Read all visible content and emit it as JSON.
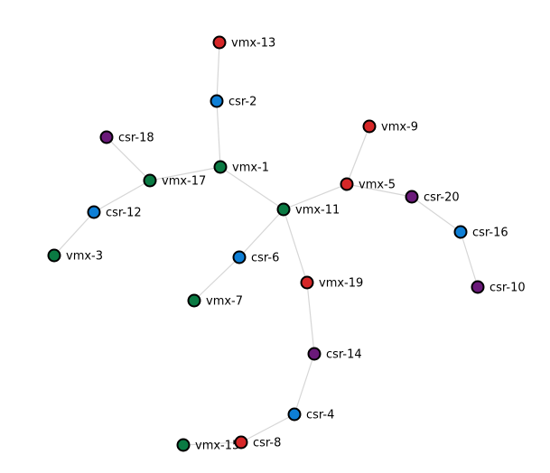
{
  "colors": {
    "red": "#d62728",
    "blue": "#0e7fd6",
    "green": "#0a7a43",
    "purple": "#6b1a7a",
    "edge": "#d6d6d6",
    "outline": "#000000"
  },
  "nodes": [
    {
      "id": "vmx-13",
      "label": "vmx-13",
      "color": "red"
    },
    {
      "id": "csr-2",
      "label": "csr-2",
      "color": "blue"
    },
    {
      "id": "vmx-9",
      "label": "vmx-9",
      "color": "red"
    },
    {
      "id": "csr-18",
      "label": "csr-18",
      "color": "purple"
    },
    {
      "id": "vmx-1",
      "label": "vmx-1",
      "color": "green"
    },
    {
      "id": "vmx-17",
      "label": "vmx-17",
      "color": "green"
    },
    {
      "id": "vmx-5",
      "label": "vmx-5",
      "color": "red"
    },
    {
      "id": "csr-20",
      "label": "csr-20",
      "color": "purple"
    },
    {
      "id": "csr-12",
      "label": "csr-12",
      "color": "blue"
    },
    {
      "id": "vmx-11",
      "label": "vmx-11",
      "color": "green"
    },
    {
      "id": "csr-16",
      "label": "csr-16",
      "color": "blue"
    },
    {
      "id": "vmx-3",
      "label": "vmx-3",
      "color": "green"
    },
    {
      "id": "csr-6",
      "label": "csr-6",
      "color": "blue"
    },
    {
      "id": "vmx-19",
      "label": "vmx-19",
      "color": "red"
    },
    {
      "id": "csr-10",
      "label": "csr-10",
      "color": "purple"
    },
    {
      "id": "vmx-7",
      "label": "vmx-7",
      "color": "green"
    },
    {
      "id": "csr-14",
      "label": "csr-14",
      "color": "purple"
    },
    {
      "id": "csr-4",
      "label": "csr-4",
      "color": "blue"
    },
    {
      "id": "vmx-15",
      "label": "vmx-15",
      "color": "green"
    },
    {
      "id": "csr-8",
      "label": "csr-8",
      "color": "red"
    }
  ],
  "edges": [
    [
      "vmx-13",
      "csr-2"
    ],
    [
      "csr-2",
      "vmx-1"
    ],
    [
      "vmx-1",
      "vmx-17"
    ],
    [
      "vmx-1",
      "vmx-11"
    ],
    [
      "csr-18",
      "vmx-17"
    ],
    [
      "vmx-17",
      "csr-12"
    ],
    [
      "csr-12",
      "vmx-3"
    ],
    [
      "vmx-11",
      "vmx-5"
    ],
    [
      "vmx-11",
      "csr-6"
    ],
    [
      "vmx-11",
      "vmx-19"
    ],
    [
      "vmx-9",
      "vmx-5"
    ],
    [
      "vmx-5",
      "csr-20"
    ],
    [
      "csr-20",
      "csr-16"
    ],
    [
      "csr-16",
      "csr-10"
    ],
    [
      "csr-6",
      "vmx-7"
    ],
    [
      "vmx-19",
      "csr-14"
    ],
    [
      "csr-14",
      "csr-4"
    ],
    [
      "csr-4",
      "csr-8"
    ],
    [
      "csr-8",
      "vmx-15"
    ]
  ]
}
